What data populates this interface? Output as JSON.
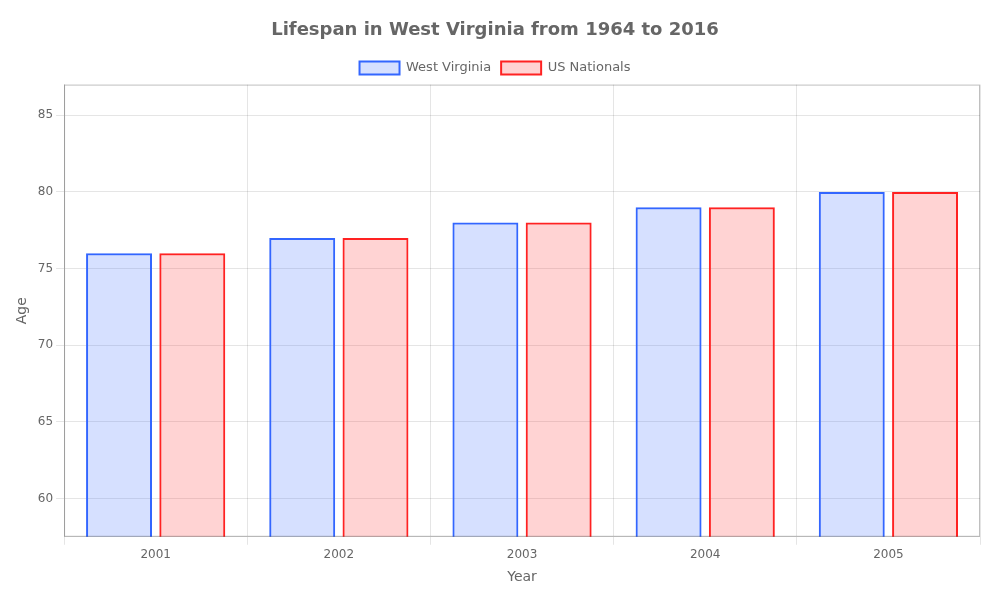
{
  "chart_data": {
    "type": "bar",
    "title": "Lifespan in West Virginia from 1964 to 2016",
    "xlabel": "Year",
    "ylabel": "Age",
    "categories": [
      "2001",
      "2002",
      "2003",
      "2004",
      "2005"
    ],
    "series": [
      {
        "name": "West Virginia",
        "color": "#3366ff",
        "values": [
          76,
          77,
          78,
          79,
          80
        ]
      },
      {
        "name": "US Nationals",
        "color": "#ff2222",
        "values": [
          76,
          77,
          78,
          79,
          80
        ]
      }
    ],
    "ylim": [
      57.5,
      87
    ],
    "yticks": [
      60,
      65,
      70,
      75,
      80,
      85
    ],
    "grid": true,
    "legend": "top"
  }
}
